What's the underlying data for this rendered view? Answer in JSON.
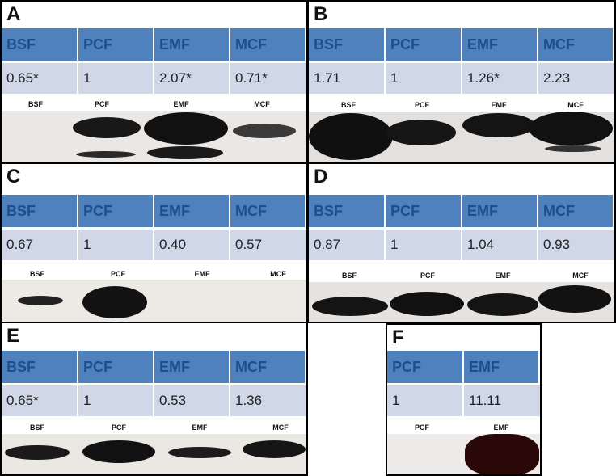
{
  "figure": {
    "panels": [
      {
        "id": "A",
        "headers": [
          "BSF",
          "PCF",
          "EMF",
          "MCF"
        ],
        "values": [
          "0.65*",
          "1",
          "2.07*",
          "0.71*"
        ],
        "lanes": [
          "BSF",
          "PCF",
          "EMF",
          "MCF"
        ]
      },
      {
        "id": "B",
        "headers": [
          "BSF",
          "PCF",
          "EMF",
          "MCF"
        ],
        "values": [
          "1.71",
          "1",
          "1.26*",
          "2.23"
        ],
        "lanes": [
          "BSF",
          "PCF",
          "EMF",
          "MCF"
        ]
      },
      {
        "id": "C",
        "headers": [
          "BSF",
          "PCF",
          "EMF",
          "MCF"
        ],
        "values": [
          "0.67",
          "1",
          "0.40",
          "0.57"
        ],
        "lanes": [
          "BSF",
          "PCF",
          "EMF",
          "MCF"
        ]
      },
      {
        "id": "D",
        "headers": [
          "BSF",
          "PCF",
          "EMF",
          "MCF"
        ],
        "values": [
          "0.87",
          "1",
          "1.04",
          "0.93"
        ],
        "lanes": [
          "BSF",
          "PCF",
          "EMF",
          "MCF"
        ]
      },
      {
        "id": "E",
        "headers": [
          "BSF",
          "PCF",
          "EMF",
          "MCF"
        ],
        "values": [
          "0.65*",
          "1",
          "0.53",
          "1.36"
        ],
        "lanes": [
          "BSF",
          "PCF",
          "EMF",
          "MCF"
        ]
      },
      {
        "id": "F",
        "headers": [
          "PCF",
          "EMF"
        ],
        "values": [
          "1",
          "11.11"
        ],
        "lanes": [
          "PCF",
          "EMF"
        ]
      }
    ],
    "colors": {
      "header_bg": "#4f81bd",
      "header_text": "#1f4e8c",
      "value_bg": "#d0d8e8",
      "band": "#111111"
    }
  }
}
